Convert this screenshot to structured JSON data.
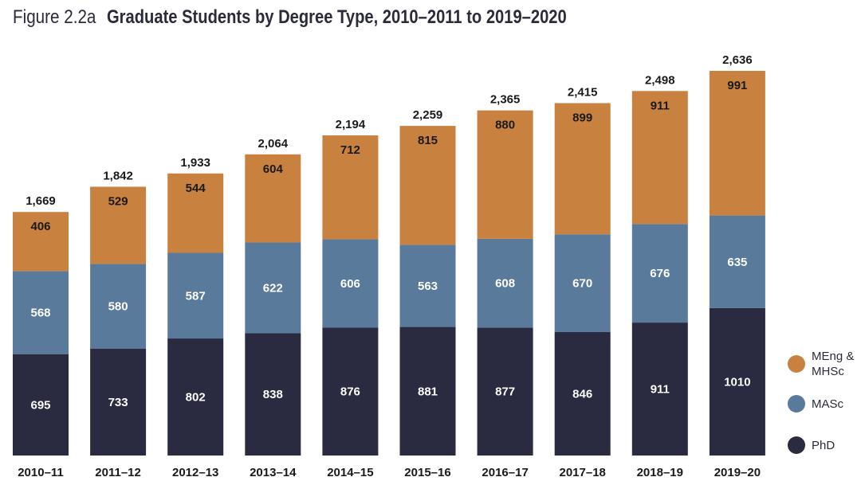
{
  "header": {
    "figure_label": "Figure 2.2a",
    "title": "Graduate Students by Degree Type, 2010–2011 to 2019–2020"
  },
  "colors": {
    "meng": "#c9813f",
    "masc": "#5a7a9b",
    "phd": "#2a2a40",
    "total_label": "#1a1a1a",
    "axis_label": "#1a1a1a"
  },
  "chart_data": {
    "type": "bar",
    "stacked": true,
    "title": "Graduate Students by Degree Type, 2010–2011 to 2019–2020",
    "categories": [
      "2010–11",
      "2011–12",
      "2012–13",
      "2013–14",
      "2014–15",
      "2015–16",
      "2016–17",
      "2017–18",
      "2018–19",
      "2019–20"
    ],
    "series": [
      {
        "name": "PhD",
        "color": "#2a2a40",
        "values": [
          695,
          733,
          802,
          838,
          876,
          881,
          877,
          846,
          911,
          1010
        ]
      },
      {
        "name": "MASc",
        "color": "#5a7a9b",
        "values": [
          568,
          580,
          587,
          622,
          606,
          563,
          608,
          670,
          676,
          635
        ]
      },
      {
        "name": "MEng & MHSc",
        "color": "#c9813f",
        "values": [
          406,
          529,
          544,
          604,
          712,
          815,
          880,
          899,
          911,
          991
        ]
      }
    ],
    "totals": [
      1669,
      1842,
      1933,
      2064,
      2194,
      2259,
      2365,
      2415,
      2498,
      2636
    ],
    "total_labels": [
      "1,669",
      "1,842",
      "1,933",
      "2,064",
      "2,194",
      "2,259",
      "2,365",
      "2,415",
      "2,498",
      "2,636"
    ],
    "ylim": [
      0,
      2636
    ],
    "grid": false,
    "legend_position": "right-bottom"
  },
  "legend": {
    "items": [
      {
        "label": "MEng & MHSc",
        "color": "#c9813f"
      },
      {
        "label": "MASc",
        "color": "#5a7a9b"
      },
      {
        "label": "PhD",
        "color": "#2a2a40"
      }
    ]
  }
}
